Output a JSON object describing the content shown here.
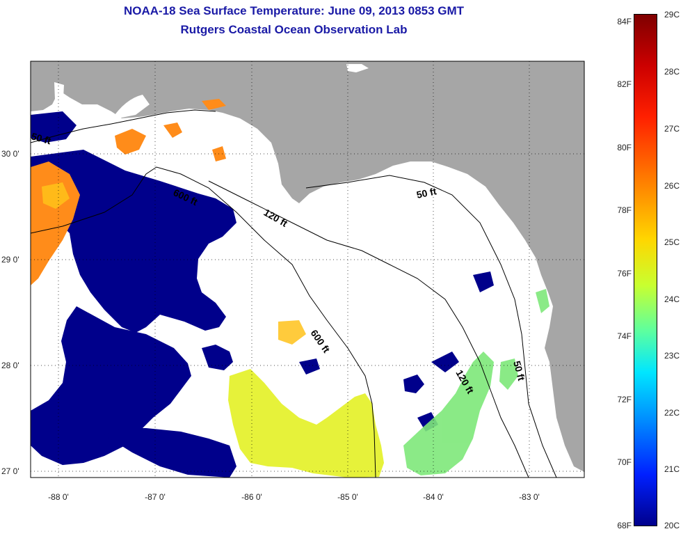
{
  "title": {
    "line1": "NOAA-18 Sea Surface Temperature:  June 09, 2013 0853 GMT",
    "line2": "Rutgers Coastal Ocean Observation Lab"
  },
  "map": {
    "latitude_labels": [
      "30 0'",
      "29 0'",
      "28 0'",
      "27 0'"
    ],
    "longitude_labels": [
      "-88 0'",
      "-87 0'",
      "-86 0'",
      "-85 0'",
      "-84 0'",
      "-83 0'"
    ],
    "contours": [
      {
        "label": "50 ft"
      },
      {
        "label": "600 ft"
      },
      {
        "label": "120 ft"
      },
      {
        "label": "50 ft"
      },
      {
        "label": "600 ft"
      },
      {
        "label": "120 ft"
      },
      {
        "label": "50 ft"
      }
    ],
    "colors": {
      "land": "#a6a6a6",
      "cloud": "#ffffff",
      "cold": "#00008b"
    }
  },
  "colorbar": {
    "fahrenheit_labels": [
      "84F",
      "82F",
      "80F",
      "78F",
      "76F",
      "74F",
      "72F",
      "70F",
      "68F"
    ],
    "celsius_labels": [
      "29C",
      "28C",
      "27C",
      "26C",
      "25C",
      "24C",
      "23C",
      "22C",
      "21C",
      "20C"
    ]
  }
}
